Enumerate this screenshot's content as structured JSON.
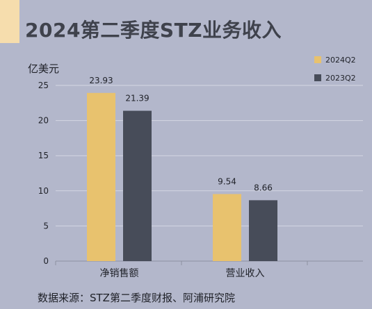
{
  "title": "2024第二季度STZ业务收入",
  "unit": "亿美元",
  "source": "数据来源：STZ第二季度财报、阿浦研究院",
  "colors": {
    "background": "#b3b7cb",
    "accent": "#f6ddad",
    "series_2024": "#e8c26e",
    "series_2023": "#474c59"
  },
  "chart_data": {
    "type": "bar",
    "categories": [
      "净销售额",
      "营业收入"
    ],
    "series": [
      {
        "name": "2024Q2",
        "values": [
          23.93,
          9.54
        ]
      },
      {
        "name": "2023Q2",
        "values": [
          21.39,
          8.66
        ]
      }
    ],
    "value_labels": [
      [
        "23.93",
        "9.54"
      ],
      [
        "21.39",
        "8.66"
      ]
    ],
    "y_ticks": [
      "0",
      "5",
      "10",
      "15",
      "20",
      "25"
    ],
    "ylim": [
      0,
      25
    ],
    "ylabel": "亿美元",
    "grid": true,
    "legend_position": "top-right"
  }
}
